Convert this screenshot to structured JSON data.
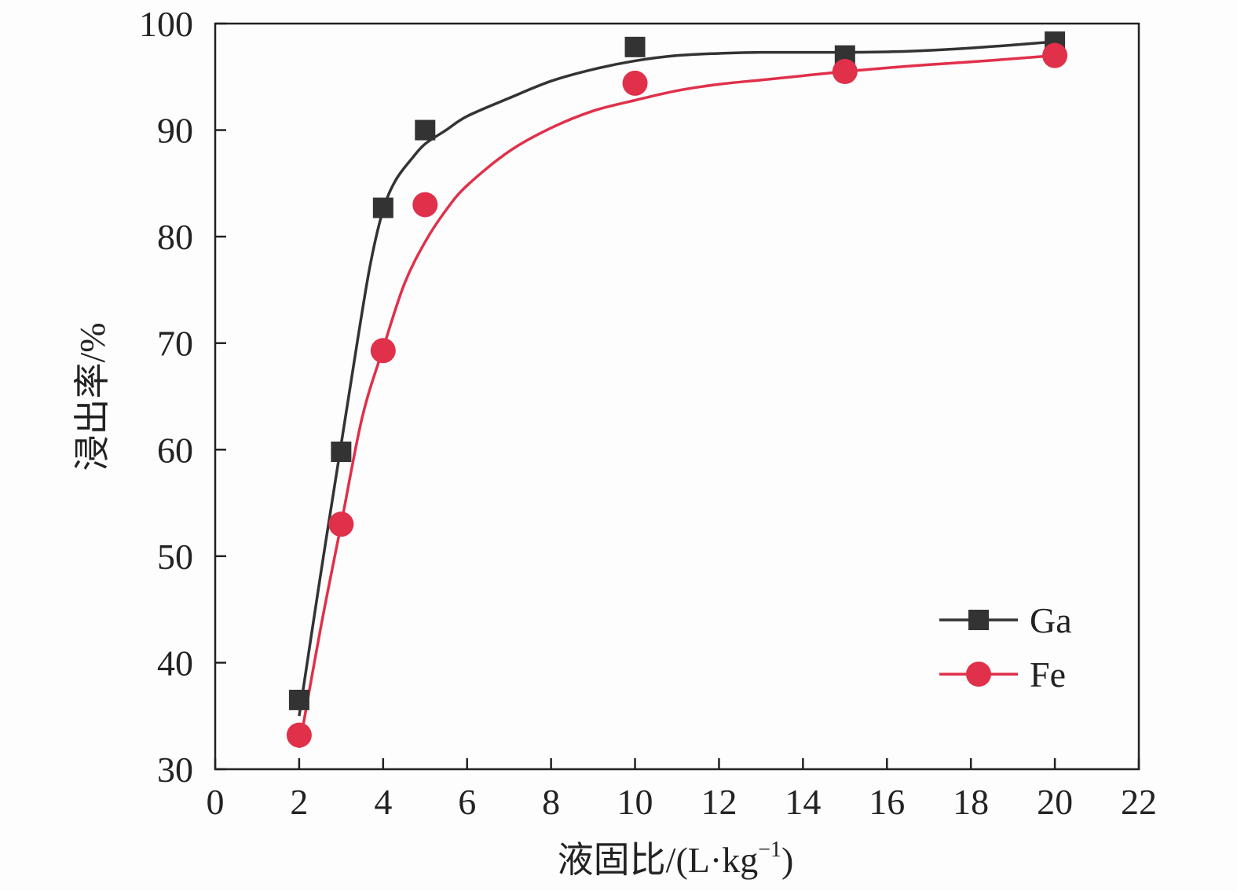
{
  "chart_data": {
    "type": "scatter",
    "title": "",
    "xlabel_main": "液固比/(L·kg",
    "xlabel_sup": "−1",
    "xlabel_end": ")",
    "ylabel": "浸出率/%",
    "xlim": [
      0,
      22
    ],
    "ylim": [
      30,
      100
    ],
    "xticks": [
      0,
      2,
      4,
      6,
      8,
      10,
      12,
      14,
      16,
      18,
      20,
      22
    ],
    "yticks": [
      30,
      40,
      50,
      60,
      70,
      80,
      90,
      100
    ],
    "grid": false,
    "legend_position": "bottom-right",
    "series": [
      {
        "name": "Ga",
        "marker": "square",
        "color": "#333333",
        "x": [
          2,
          3,
          4,
          5,
          10,
          15,
          20
        ],
        "y": [
          36.5,
          59.8,
          82.7,
          90.0,
          97.8,
          97.0,
          98.3
        ],
        "fit_x": [
          2.0,
          2.5,
          3.0,
          3.4,
          3.7,
          4.0,
          4.3,
          4.7,
          5.0,
          5.5,
          6.0,
          7.0,
          8.0,
          9.0,
          10.0,
          11.0,
          12.0,
          13.0,
          15.0,
          16.5,
          18.0,
          20.0
        ],
        "fit_y": [
          35.0,
          48.0,
          60.5,
          70.5,
          77.5,
          82.5,
          85.3,
          87.4,
          88.7,
          90.0,
          91.3,
          93.0,
          94.6,
          95.7,
          96.5,
          97.0,
          97.2,
          97.3,
          97.3,
          97.4,
          97.7,
          98.3
        ]
      },
      {
        "name": "Fe",
        "marker": "circle",
        "color": "#e0304a",
        "x": [
          2,
          3,
          4,
          5,
          10,
          15,
          20
        ],
        "y": [
          33.2,
          53.0,
          69.3,
          83.0,
          94.4,
          95.5,
          97.0
        ],
        "fit_x": [
          2.0,
          2.5,
          3.0,
          3.5,
          4.0,
          4.5,
          5.0,
          5.5,
          6.0,
          7.0,
          8.0,
          9.0,
          10.0,
          11.0,
          12.0,
          13.0,
          14.0,
          15.0,
          16.5,
          18.0,
          20.0
        ],
        "fit_y": [
          32.0,
          43.0,
          53.0,
          63.0,
          69.5,
          75.5,
          79.5,
          82.5,
          84.8,
          88.0,
          90.2,
          91.8,
          92.8,
          93.7,
          94.3,
          94.7,
          95.1,
          95.5,
          96.0,
          96.4,
          97.0
        ]
      }
    ]
  }
}
